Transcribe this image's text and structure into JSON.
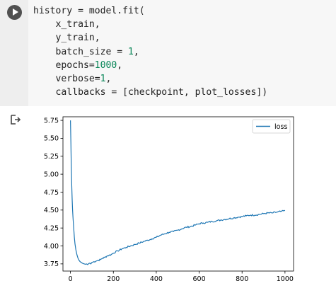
{
  "code_cell": {
    "run_button_icon": "play-icon",
    "lines": [
      [
        {
          "t": "history = model.fit("
        }
      ],
      [
        {
          "t": "    x_train,"
        }
      ],
      [
        {
          "t": "    y_train,"
        }
      ],
      [
        {
          "t": "    batch_size = "
        },
        {
          "t": "1",
          "num": true
        },
        {
          "t": ","
        }
      ],
      [
        {
          "t": "    epochs="
        },
        {
          "t": "1000",
          "num": true
        },
        {
          "t": ","
        }
      ],
      [
        {
          "t": "    verbose="
        },
        {
          "t": "1",
          "num": true
        },
        {
          "t": ","
        }
      ],
      [
        {
          "t": "    callbacks = [checkpoint, plot_losses])"
        }
      ]
    ]
  },
  "output": {
    "icon": "output-redirect-icon"
  },
  "chart_data": {
    "type": "line",
    "title": "",
    "xlabel": "",
    "ylabel": "",
    "xlim": [
      -35,
      1040
    ],
    "ylim": [
      3.65,
      5.8
    ],
    "xticks": [
      0,
      200,
      400,
      600,
      800,
      1000
    ],
    "yticks": [
      3.75,
      4.0,
      4.25,
      4.5,
      4.75,
      5.0,
      5.25,
      5.5,
      5.75
    ],
    "ytick_labels": [
      "3.75",
      "4.00",
      "4.25",
      "4.50",
      "4.75",
      "5.00",
      "5.25",
      "5.50",
      "5.75"
    ],
    "legend": "top-right",
    "grid": false,
    "series": [
      {
        "name": "loss",
        "color": "#1f77b4",
        "x": [
          0,
          2,
          4,
          6,
          8,
          10,
          12,
          15,
          18,
          21,
          25,
          30,
          35,
          40,
          45,
          50,
          55,
          60,
          65,
          70,
          75,
          80,
          85,
          90,
          95,
          100,
          110,
          120,
          130,
          140,
          150,
          160,
          170,
          180,
          190,
          200,
          220,
          240,
          260,
          280,
          300,
          320,
          340,
          360,
          380,
          400,
          420,
          440,
          460,
          480,
          500,
          520,
          540,
          560,
          580,
          600,
          620,
          640,
          660,
          680,
          700,
          720,
          740,
          760,
          780,
          800,
          820,
          840,
          860,
          880,
          900,
          920,
          940,
          960,
          980,
          1000
        ],
        "y": [
          5.75,
          5.45,
          5.1,
          4.85,
          4.65,
          4.5,
          4.38,
          4.25,
          4.12,
          4.03,
          3.95,
          3.88,
          3.83,
          3.8,
          3.78,
          3.77,
          3.76,
          3.755,
          3.75,
          3.745,
          3.75,
          3.74,
          3.755,
          3.76,
          3.75,
          3.77,
          3.78,
          3.79,
          3.8,
          3.81,
          3.83,
          3.84,
          3.86,
          3.87,
          3.88,
          3.9,
          3.93,
          3.96,
          3.98,
          4.0,
          4.02,
          4.04,
          4.06,
          4.08,
          4.1,
          4.12,
          4.15,
          4.17,
          4.19,
          4.2,
          4.22,
          4.24,
          4.26,
          4.27,
          4.29,
          4.31,
          4.32,
          4.33,
          4.34,
          4.35,
          4.36,
          4.37,
          4.38,
          4.39,
          4.4,
          4.41,
          4.42,
          4.43,
          4.43,
          4.44,
          4.45,
          4.46,
          4.46,
          4.47,
          4.48,
          4.49
        ]
      }
    ]
  }
}
